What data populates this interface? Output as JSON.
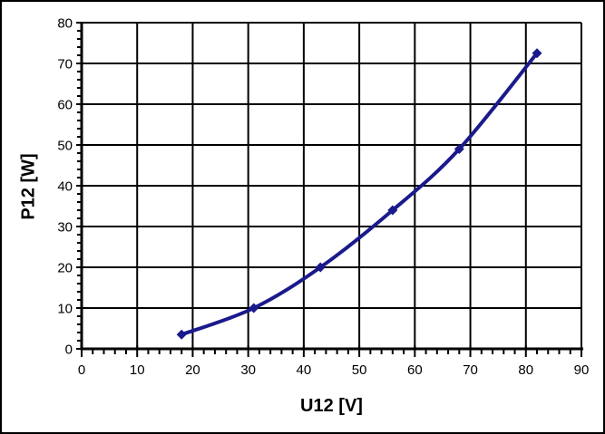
{
  "chart_data": {
    "type": "line",
    "title": "",
    "xlabel": "U12 [V]",
    "ylabel": "P12 [W]",
    "x": [
      18,
      31,
      43,
      56,
      68,
      82
    ],
    "y": [
      3.5,
      10,
      20,
      34,
      49,
      72.5
    ],
    "series": [
      {
        "name": "P12",
        "x": [
          18,
          31,
          43,
          56,
          68,
          82
        ],
        "values": [
          3.5,
          10,
          20,
          34,
          49,
          72.5
        ]
      }
    ],
    "xlim": [
      0,
      90
    ],
    "ylim": [
      0,
      80
    ],
    "x_major_ticks": [
      0,
      10,
      20,
      30,
      40,
      50,
      60,
      70,
      80,
      90
    ],
    "y_major_ticks": [
      0,
      10,
      20,
      30,
      40,
      50,
      60,
      70,
      80
    ],
    "minor_tick_step_x": 2,
    "minor_tick_step_y": 2,
    "grid": "major-both",
    "smooth_line": true,
    "marker": "diamond",
    "legend_position": "none",
    "colors": {
      "line": "#1a1a8c",
      "marker": "#1a1a8c",
      "grid": "#000000",
      "axis": "#000000",
      "text": "#000000",
      "background": "#ffffff",
      "frame_border": "#000000"
    }
  }
}
